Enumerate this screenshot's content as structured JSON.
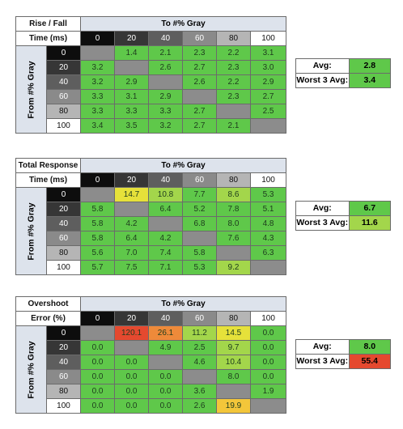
{
  "chart_data": [
    {
      "type": "table",
      "title_lines": [
        "Rise / Fall",
        "Time (ms)"
      ],
      "column_header": "To #% Gray",
      "row_header": "From #% Gray",
      "levels": [
        "0",
        "20",
        "40",
        "60",
        "80",
        "100"
      ],
      "rows": [
        [
          null,
          "1.4",
          "2.1",
          "2.3",
          "2.2",
          "3.1"
        ],
        [
          "3.2",
          null,
          "2.6",
          "2.7",
          "2.3",
          "3.0"
        ],
        [
          "3.2",
          "2.9",
          null,
          "2.6",
          "2.2",
          "2.9"
        ],
        [
          "3.3",
          "3.1",
          "2.9",
          null,
          "2.3",
          "2.7"
        ],
        [
          "3.3",
          "3.3",
          "3.3",
          "2.7",
          null,
          "2.5"
        ],
        [
          "3.4",
          "3.5",
          "3.2",
          "2.7",
          "2.1",
          null
        ]
      ],
      "colors": [
        [
          null,
          "g",
          "g",
          "g",
          "g",
          "g"
        ],
        [
          "g",
          null,
          "g",
          "g",
          "g",
          "g"
        ],
        [
          "g",
          "g",
          null,
          "g",
          "g",
          "g"
        ],
        [
          "g",
          "g",
          "g",
          null,
          "g",
          "g"
        ],
        [
          "g",
          "g",
          "g",
          "g",
          null,
          "g"
        ],
        [
          "g",
          "g",
          "g",
          "g",
          "g",
          null
        ]
      ],
      "stats": [
        {
          "label": "Avg:",
          "value": "2.8",
          "color": "g"
        },
        {
          "label": "Worst 3 Avg:",
          "value": "3.4",
          "color": "g"
        }
      ]
    },
    {
      "type": "table",
      "title_lines": [
        "Total Response",
        "Time (ms)"
      ],
      "column_header": "To #% Gray",
      "row_header": "From #% Gray",
      "levels": [
        "0",
        "20",
        "40",
        "60",
        "80",
        "100"
      ],
      "rows": [
        [
          null,
          "14.7",
          "10.8",
          "7.7",
          "8.6",
          "5.3"
        ],
        [
          "5.8",
          null,
          "6.4",
          "5.2",
          "7.8",
          "5.1"
        ],
        [
          "5.8",
          "4.2",
          null,
          "6.8",
          "8.0",
          "4.8"
        ],
        [
          "5.8",
          "6.4",
          "4.2",
          null,
          "7.6",
          "4.3"
        ],
        [
          "5.6",
          "7.0",
          "7.4",
          "5.8",
          null,
          "6.3"
        ],
        [
          "5.7",
          "7.5",
          "7.1",
          "5.3",
          "9.2",
          null
        ]
      ],
      "colors": [
        [
          null,
          "y",
          "lg",
          "g",
          "lg",
          "g"
        ],
        [
          "g",
          null,
          "g",
          "g",
          "g",
          "g"
        ],
        [
          "g",
          "g",
          null,
          "g",
          "g",
          "g"
        ],
        [
          "g",
          "g",
          "g",
          null,
          "g",
          "g"
        ],
        [
          "g",
          "g",
          "g",
          "g",
          null,
          "g"
        ],
        [
          "g",
          "g",
          "g",
          "g",
          "lg",
          null
        ]
      ],
      "stats": [
        {
          "label": "Avg:",
          "value": "6.7",
          "color": "g"
        },
        {
          "label": "Worst 3 Avg:",
          "value": "11.6",
          "color": "lg"
        }
      ]
    },
    {
      "type": "table",
      "title_lines": [
        "Overshoot",
        "Error (%)"
      ],
      "column_header": "To #% Gray",
      "row_header": "From #% Gray",
      "levels": [
        "0",
        "20",
        "40",
        "60",
        "80",
        "100"
      ],
      "rows": [
        [
          null,
          "120.1",
          "26.1",
          "11.2",
          "14.5",
          "0.0"
        ],
        [
          "0.0",
          null,
          "4.9",
          "2.5",
          "9.7",
          "0.0"
        ],
        [
          "0.0",
          "0.0",
          null,
          "4.6",
          "10.4",
          "0.0"
        ],
        [
          "0.0",
          "0.0",
          "0.0",
          null,
          "8.0",
          "0.0"
        ],
        [
          "0.0",
          "0.0",
          "0.0",
          "3.6",
          null,
          "1.9"
        ],
        [
          "0.0",
          "0.0",
          "0.0",
          "2.6",
          "19.9",
          null
        ]
      ],
      "colors": [
        [
          null,
          "r",
          "o",
          "lg",
          "y",
          "g"
        ],
        [
          "g",
          null,
          "g",
          "g",
          "lg",
          "g"
        ],
        [
          "g",
          "g",
          null,
          "g",
          "lg",
          "g"
        ],
        [
          "g",
          "g",
          "g",
          null,
          "g",
          "g"
        ],
        [
          "g",
          "g",
          "g",
          "g",
          null,
          "g"
        ],
        [
          "g",
          "g",
          "g",
          "g",
          "yo",
          null
        ]
      ],
      "stats": [
        {
          "label": "Avg:",
          "value": "8.0",
          "color": "g"
        },
        {
          "label": "Worst 3 Avg:",
          "value": "55.4",
          "color": "r"
        }
      ]
    }
  ],
  "palette": {
    "g": "#5fc84a",
    "lg": "#a3d64b",
    "y": "#e6e13a",
    "yo": "#f3c63a",
    "o": "#ee8a3a",
    "r": "#e5492f",
    "diag": "#8c8c8c",
    "level_backgrounds": [
      "#0d0d0d",
      "#363636",
      "#5e5e5e",
      "#8a8a8a",
      "#b5b5b5",
      "#ffffff"
    ],
    "level_text": [
      "#ffffff",
      "#ffffff",
      "#ffffff",
      "#ffffff",
      "#111111",
      "#111111"
    ]
  }
}
